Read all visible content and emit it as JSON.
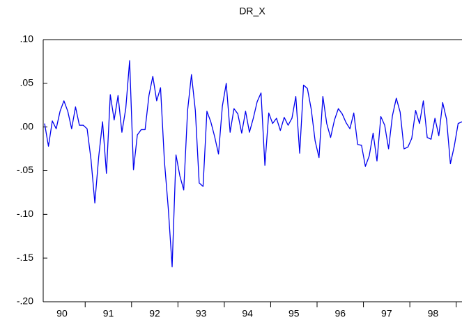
{
  "chart_data": {
    "type": "line",
    "title": "DR_X",
    "categories": [
      null,
      null,
      null,
      null,
      "90",
      null,
      null,
      null,
      null,
      null,
      null,
      null,
      null,
      null,
      null,
      null,
      "91",
      null,
      null,
      null,
      null,
      null,
      null,
      null,
      null,
      null,
      null,
      null,
      "92",
      null,
      null,
      null,
      null,
      null,
      null,
      null,
      null,
      null,
      null,
      null,
      "93",
      null,
      null,
      null,
      null,
      null,
      null,
      null,
      null,
      null,
      null,
      null,
      "94",
      null,
      null,
      null,
      null,
      null,
      null,
      null,
      null,
      null,
      null,
      null,
      "95",
      null,
      null,
      null,
      null,
      null,
      null,
      null,
      null,
      null,
      null,
      null,
      "96",
      null,
      null,
      null,
      null,
      null,
      null,
      null,
      null,
      null,
      null,
      null,
      "97",
      null,
      null,
      null,
      null,
      null,
      null,
      null,
      null,
      null,
      null,
      null,
      "98",
      null,
      null,
      null,
      null,
      null,
      null,
      null,
      null
    ],
    "series": [
      {
        "name": "DR_X",
        "color": "#0000ee",
        "values": [
          0.004,
          -0.022,
          0.007,
          -0.002,
          0.018,
          0.03,
          0.018,
          -0.002,
          0.023,
          0.002,
          0.002,
          -0.002,
          -0.037,
          -0.087,
          -0.034,
          0.006,
          -0.053,
          0.037,
          0.008,
          0.036,
          -0.006,
          0.021,
          0.076,
          -0.049,
          -0.009,
          -0.003,
          -0.003,
          0.036,
          0.058,
          0.03,
          0.045,
          -0.039,
          -0.093,
          -0.16,
          -0.032,
          -0.056,
          -0.072,
          0.019,
          0.06,
          0.019,
          -0.064,
          -0.068,
          0.018,
          0.006,
          -0.011,
          -0.031,
          0.024,
          0.05,
          -0.006,
          0.021,
          0.015,
          -0.007,
          0.018,
          -0.006,
          0.01,
          0.029,
          0.039,
          -0.044,
          0.016,
          0.004,
          0.01,
          -0.004,
          0.011,
          0.002,
          0.01,
          0.035,
          -0.03,
          0.048,
          0.044,
          0.02,
          -0.016,
          -0.035,
          0.035,
          0.004,
          -0.012,
          0.008,
          0.021,
          0.015,
          0.005,
          -0.002,
          0.016,
          -0.02,
          -0.021,
          -0.045,
          -0.033,
          -0.007,
          -0.039,
          0.012,
          0.002,
          -0.025,
          0.013,
          0.033,
          0.017,
          -0.025,
          -0.023,
          -0.013,
          0.019,
          0.004,
          0.03,
          -0.012,
          -0.014,
          0.01,
          -0.01,
          0.028,
          0.009,
          -0.042,
          -0.022,
          0.004,
          0.006
        ]
      }
    ],
    "ylim": [
      -0.2,
      0.1
    ],
    "yticks": [
      {
        "value": -0.2,
        "label": "-.20"
      },
      {
        "value": -0.15,
        "label": "-.15"
      },
      {
        "value": -0.1,
        "label": "-.10"
      },
      {
        "value": -0.05,
        "label": "-.05"
      },
      {
        "value": 0,
        "label": ".00"
      },
      {
        "value": 0.05,
        "label": ".05"
      },
      {
        "value": 0.1,
        "label": ".10"
      }
    ],
    "grid": false
  }
}
